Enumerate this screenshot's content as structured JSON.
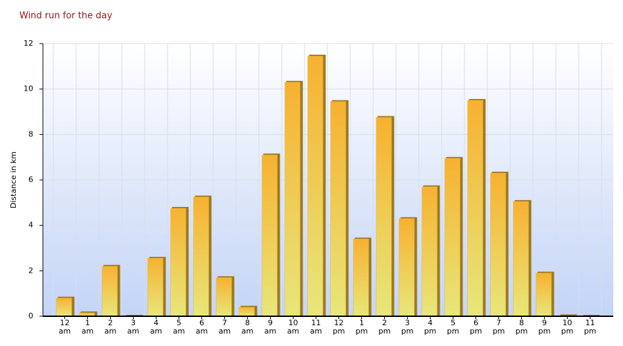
{
  "chart_data": {
    "type": "bar",
    "title": "Wind run for the day",
    "y_label": "Distance in km",
    "categories": [
      "12\nam",
      "1\nam",
      "2\nam",
      "3\nam",
      "4\nam",
      "5\nam",
      "6\nam",
      "7\nam",
      "8\nam",
      "9\nam",
      "10\nam",
      "11\nam",
      "12\npm",
      "1\npm",
      "2\npm",
      "3\npm",
      "4\npm",
      "5\npm",
      "6\npm",
      "7\npm",
      "8\npm",
      "9\npm",
      "10\npm",
      "11\npm"
    ],
    "values": [
      0.8,
      0.15,
      2.2,
      0,
      2.55,
      4.75,
      5.25,
      1.7,
      0.4,
      7.1,
      10.3,
      11.45,
      9.45,
      3.4,
      8.75,
      4.3,
      5.7,
      6.95,
      9.5,
      6.3,
      5.05,
      1.9,
      0.02,
      0
    ],
    "color": "#f5b335",
    "ylim": [
      0,
      12
    ],
    "yticks": [
      0,
      2,
      4,
      6,
      8,
      10,
      12
    ],
    "grid": true
  }
}
